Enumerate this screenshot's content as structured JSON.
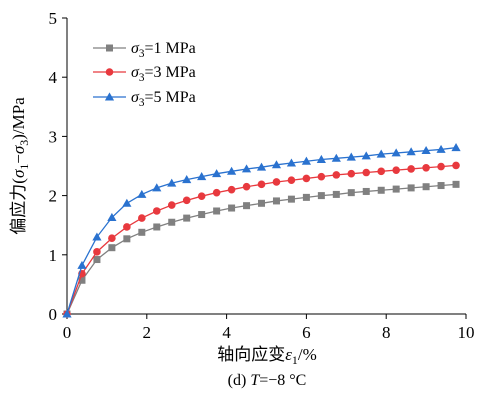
{
  "chart_data": {
    "type": "line",
    "xlabel": "轴向应变ε1/%",
    "ylabel": "偏应力(σ1−σ3)/MPa",
    "caption": "(d) T=−8 °C",
    "xlim": [
      0,
      10
    ],
    "ylim": [
      0,
      5
    ],
    "xticks": [
      0,
      2,
      4,
      6,
      8,
      10
    ],
    "yticks": [
      0,
      1,
      2,
      3,
      4,
      5
    ],
    "grid": false,
    "legend": "top-left",
    "x": [
      0,
      0.375,
      0.75,
      1.125,
      1.5,
      1.875,
      2.25,
      2.625,
      3,
      3.375,
      3.75,
      4.125,
      4.5,
      4.875,
      5.25,
      5.625,
      6,
      6.375,
      6.75,
      7.125,
      7.5,
      7.875,
      8.25,
      8.625,
      9,
      9.375,
      9.75
    ],
    "series": [
      {
        "name": "σ3=1 MPa",
        "color": "#808080",
        "marker": "square",
        "values": [
          0,
          0.57,
          0.92,
          1.12,
          1.27,
          1.38,
          1.47,
          1.55,
          1.62,
          1.68,
          1.74,
          1.79,
          1.83,
          1.87,
          1.91,
          1.94,
          1.97,
          2.0,
          2.02,
          2.05,
          2.07,
          2.09,
          2.11,
          2.13,
          2.15,
          2.17,
          2.19
        ]
      },
      {
        "name": "σ3=3 MPa",
        "color": "#e8393e",
        "marker": "circle",
        "values": [
          0,
          0.68,
          1.05,
          1.28,
          1.47,
          1.62,
          1.74,
          1.84,
          1.92,
          1.99,
          2.05,
          2.1,
          2.15,
          2.19,
          2.23,
          2.26,
          2.29,
          2.32,
          2.35,
          2.37,
          2.39,
          2.41,
          2.43,
          2.45,
          2.47,
          2.49,
          2.51
        ]
      },
      {
        "name": "σ3=5 MPa",
        "color": "#2a72cf",
        "marker": "triangle",
        "values": [
          0,
          0.82,
          1.3,
          1.63,
          1.87,
          2.02,
          2.13,
          2.21,
          2.27,
          2.32,
          2.37,
          2.41,
          2.45,
          2.48,
          2.52,
          2.55,
          2.58,
          2.61,
          2.63,
          2.65,
          2.67,
          2.7,
          2.72,
          2.74,
          2.76,
          2.78,
          2.81
        ]
      }
    ]
  }
}
